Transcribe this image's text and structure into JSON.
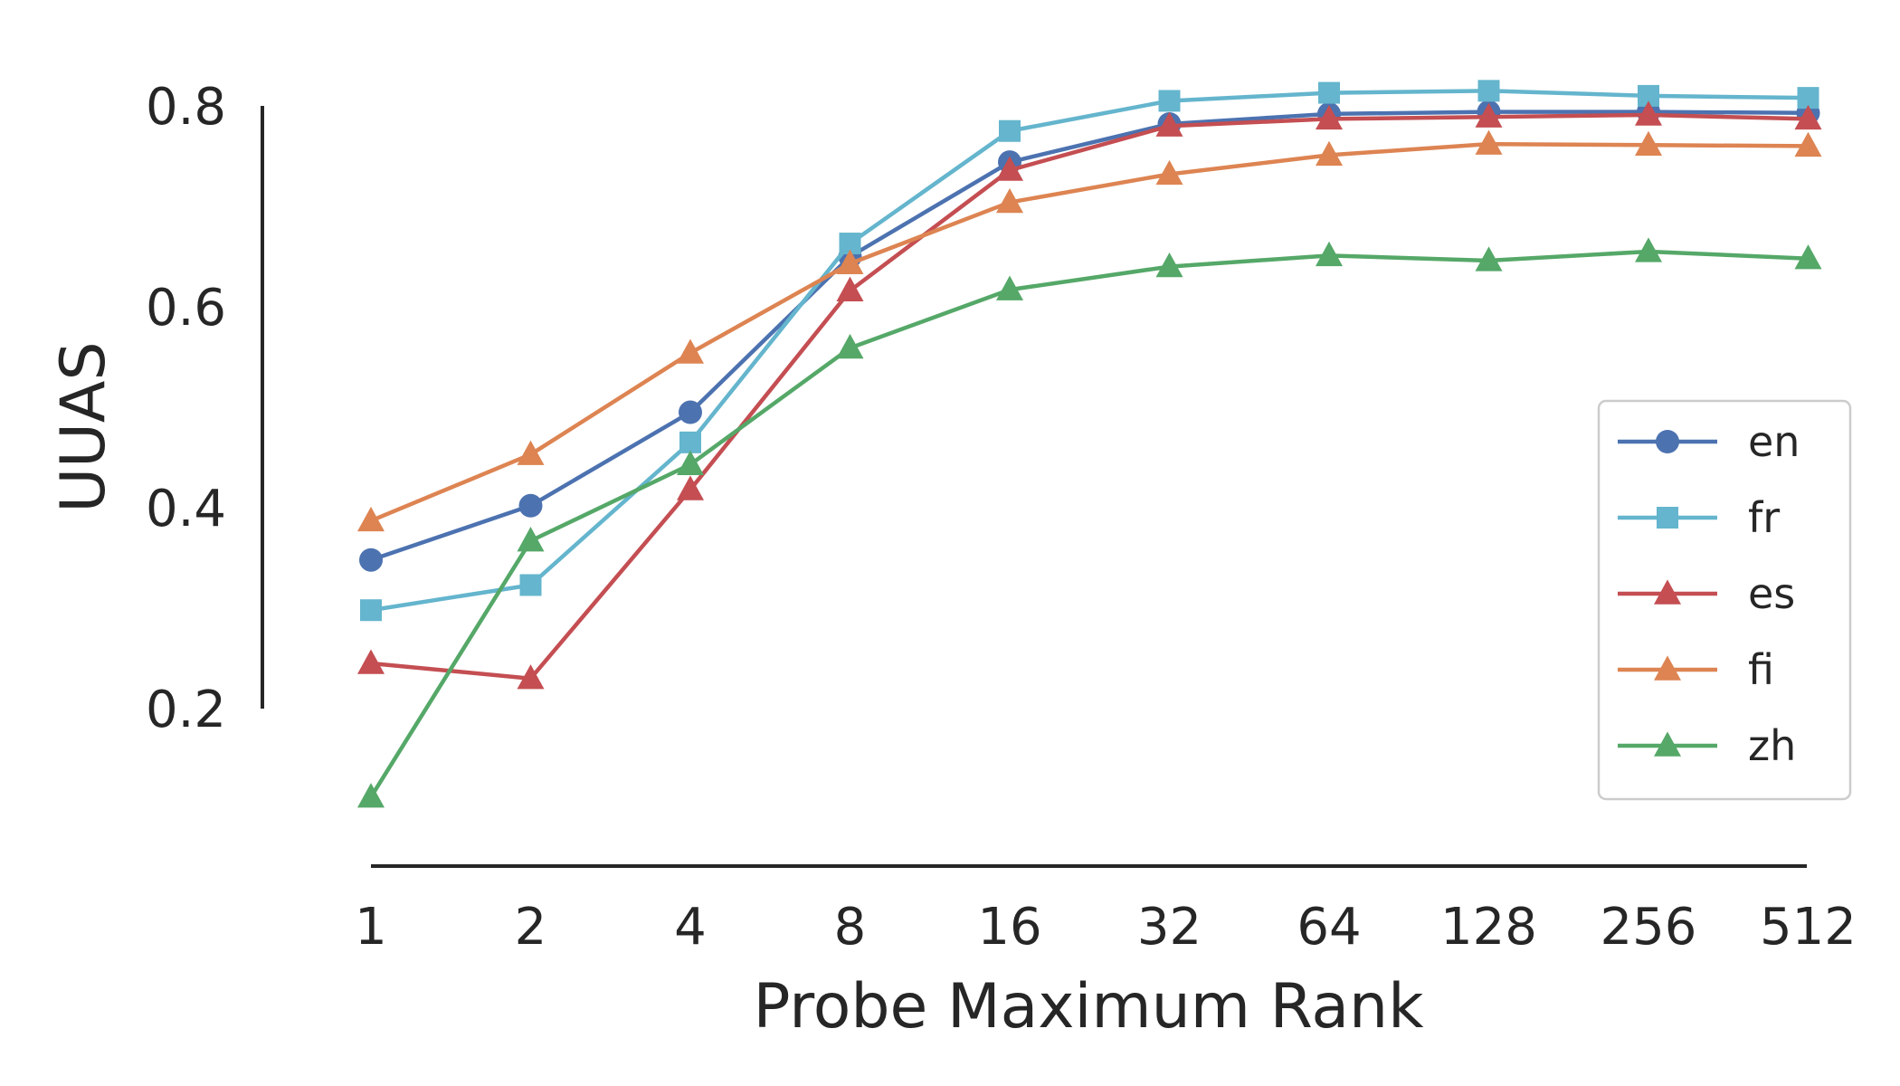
{
  "chart_data": {
    "type": "line",
    "xlabel": "Probe Maximum Rank",
    "ylabel": "UUAS",
    "categories": [
      "1",
      "2",
      "4",
      "8",
      "16",
      "32",
      "64",
      "128",
      "256",
      "512"
    ],
    "y_ticks": [
      "0.2",
      "0.4",
      "0.6",
      "0.8"
    ],
    "y_tick_values": [
      0.2,
      0.4,
      0.6,
      0.8
    ],
    "ylim": [
      0.2,
      0.8
    ],
    "grid": false,
    "legend_position": "right",
    "series": [
      {
        "name": "en",
        "marker": "circle",
        "color": "#4c72b0",
        "values": [
          0.348,
          0.402,
          0.495,
          0.65,
          0.744,
          0.782,
          0.792,
          0.794,
          0.794,
          0.793
        ]
      },
      {
        "name": "fr",
        "marker": "square",
        "color": "#64b5cd",
        "values": [
          0.298,
          0.323,
          0.465,
          0.663,
          0.775,
          0.805,
          0.813,
          0.815,
          0.81,
          0.808
        ]
      },
      {
        "name": "es",
        "marker": "triangle",
        "color": "#c44e52",
        "values": [
          0.245,
          0.23,
          0.418,
          0.616,
          0.736,
          0.78,
          0.787,
          0.789,
          0.791,
          0.787
        ]
      },
      {
        "name": "fi",
        "marker": "triangle",
        "color": "#dd8452",
        "values": [
          0.387,
          0.453,
          0.554,
          0.643,
          0.704,
          0.732,
          0.751,
          0.762,
          0.761,
          0.76
        ]
      },
      {
        "name": "zh",
        "marker": "triangle",
        "color": "#55a868",
        "values": [
          0.112,
          0.367,
          0.443,
          0.559,
          0.617,
          0.64,
          0.651,
          0.646,
          0.655,
          0.648
        ]
      }
    ]
  }
}
